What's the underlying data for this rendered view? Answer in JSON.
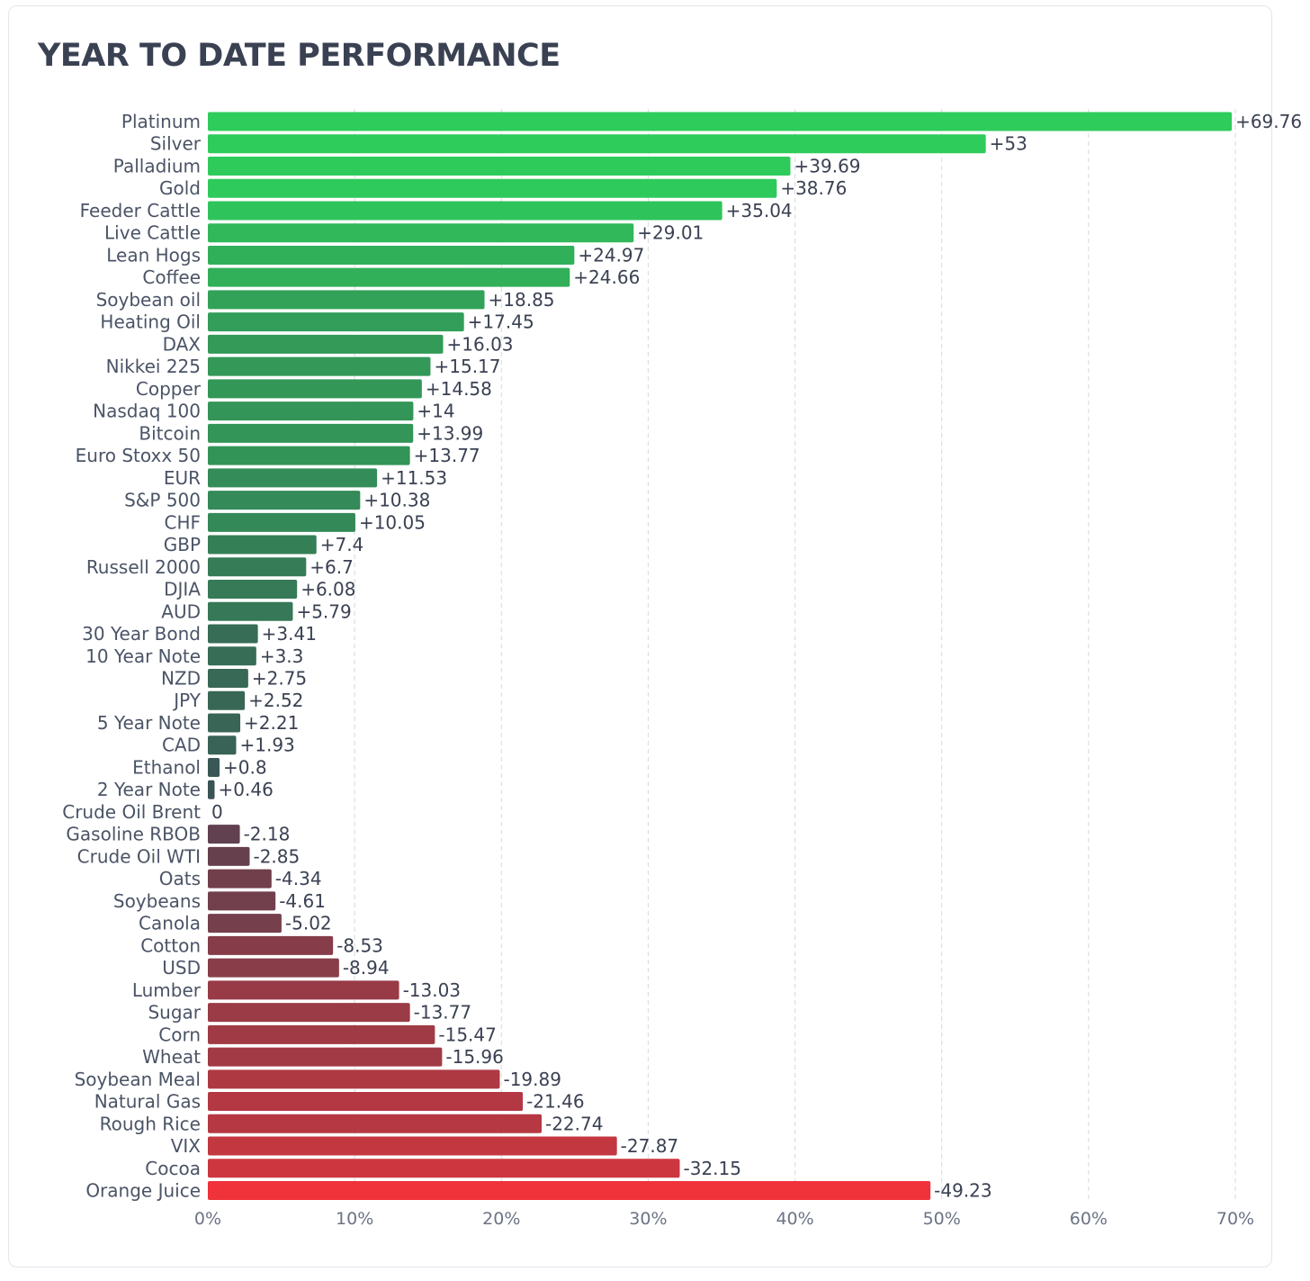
{
  "chart_data": {
    "type": "bar",
    "orientation": "horizontal",
    "title": "YEAR TO DATE PERFORMANCE",
    "xlabel": "",
    "ylabel": "",
    "xlim": [
      0,
      70
    ],
    "x_ticks": [
      0,
      10,
      20,
      30,
      40,
      50,
      60,
      70
    ],
    "x_tick_labels": [
      "0%",
      "10%",
      "20%",
      "30%",
      "40%",
      "50%",
      "60%",
      "70%"
    ],
    "bar_length": "absolute value",
    "grid": true,
    "legend": "none",
    "color_scale": {
      "strong_positive": "#2ecc5b",
      "near_zero": "#3b4554",
      "strong_negative": "#f0323a"
    },
    "categories": [
      "Platinum",
      "Silver",
      "Palladium",
      "Gold",
      "Feeder Cattle",
      "Live Cattle",
      "Lean Hogs",
      "Coffee",
      "Soybean oil",
      "Heating Oil",
      "DAX",
      "Nikkei 225",
      "Copper",
      "Nasdaq 100",
      "Bitcoin",
      "Euro Stoxx 50",
      "EUR",
      "S&P 500",
      "CHF",
      "GBP",
      "Russell 2000",
      "DJIA",
      "AUD",
      "30 Year Bond",
      "10 Year Note",
      "NZD",
      "JPY",
      "5 Year Note",
      "CAD",
      "Ethanol",
      "2 Year Note",
      "Crude Oil Brent",
      "Gasoline RBOB",
      "Crude Oil WTI",
      "Oats",
      "Soybeans",
      "Canola",
      "Cotton",
      "USD",
      "Lumber",
      "Sugar",
      "Corn",
      "Wheat",
      "Soybean Meal",
      "Natural Gas",
      "Rough Rice",
      "VIX",
      "Cocoa",
      "Orange Juice"
    ],
    "values": [
      69.76,
      53,
      39.69,
      38.76,
      35.04,
      29.01,
      24.97,
      24.66,
      18.85,
      17.45,
      16.03,
      15.17,
      14.58,
      14,
      13.99,
      13.77,
      11.53,
      10.38,
      10.05,
      7.4,
      6.7,
      6.08,
      5.79,
      3.41,
      3.3,
      2.75,
      2.52,
      2.21,
      1.93,
      0.8,
      0.46,
      0,
      -2.18,
      -2.85,
      -4.34,
      -4.61,
      -5.02,
      -8.53,
      -8.94,
      -13.03,
      -13.77,
      -15.47,
      -15.96,
      -19.89,
      -21.46,
      -22.74,
      -27.87,
      -32.15,
      -49.23
    ],
    "value_labels": [
      "+69.76",
      "+53",
      "+39.69",
      "+38.76",
      "+35.04",
      "+29.01",
      "+24.97",
      "+24.66",
      "+18.85",
      "+17.45",
      "+16.03",
      "+15.17",
      "+14.58",
      "+14",
      "+13.99",
      "+13.77",
      "+11.53",
      "+10.38",
      "+10.05",
      "+7.4",
      "+6.7",
      "+6.08",
      "+5.79",
      "+3.41",
      "+3.3",
      "+2.75",
      "+2.52",
      "+2.21",
      "+1.93",
      "+0.8",
      "+0.46",
      "0",
      "-2.18",
      "-2.85",
      "-4.34",
      "-4.61",
      "-5.02",
      "-8.53",
      "-8.94",
      "-13.03",
      "-13.77",
      "-15.47",
      "-15.96",
      "-19.89",
      "-21.46",
      "-22.74",
      "-27.87",
      "-32.15",
      "-49.23"
    ]
  }
}
